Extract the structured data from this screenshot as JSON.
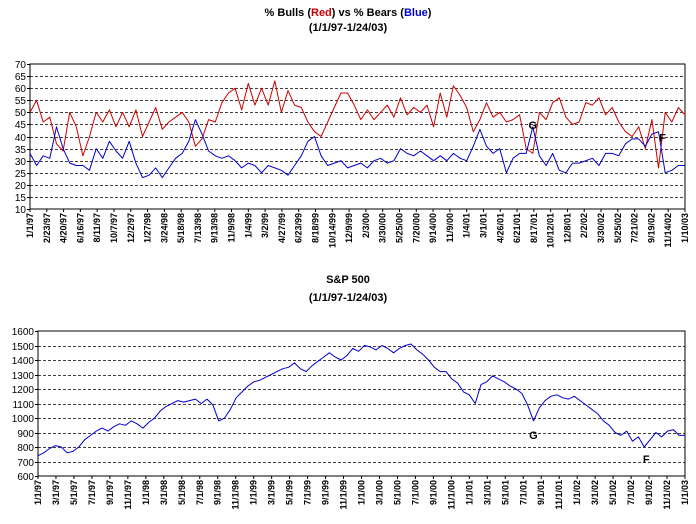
{
  "chart_data": [
    {
      "type": "line",
      "title_parts": [
        {
          "text": "% Bulls (",
          "color": "#000000"
        },
        {
          "text": "Red",
          "color": "#cc0000"
        },
        {
          "text": ") vs % Bears (",
          "color": "#000000"
        },
        {
          "text": "Blue",
          "color": "#0000cc"
        },
        {
          "text": ")",
          "color": "#000000"
        }
      ],
      "subtitle": "(1/1/97-1/24/03)",
      "xlabel": "",
      "ylabel": "",
      "ylim": [
        10,
        70
      ],
      "ytick_step": 5,
      "grid": true,
      "legend": "none",
      "x_tick_labels": [
        "1/1/97",
        "2/23/97",
        "4/20/97",
        "6/16/97",
        "8/11/97",
        "10/7/97",
        "12/2/97",
        "1/27/98",
        "3/24/98",
        "5/18/98",
        "7/13/98",
        "9/13/98",
        "11/9/98",
        "1/4/99",
        "3/2/99",
        "4/27/99",
        "6/23/99",
        "8/18/99",
        "10/14/99",
        "12/9/99",
        "2/3/00",
        "3/30/00",
        "5/25/00",
        "7/20/00",
        "9/14/00",
        "11/9/00",
        "1/4/01",
        "3/1/01",
        "4/26/01",
        "6/21/01",
        "8/17/01",
        "10/12/01",
        "12/8/01",
        "2/2/02",
        "3/30/02",
        "5/25/02",
        "7/21/02",
        "9/19/02",
        "11/14/02",
        "1/10/03"
      ],
      "series": [
        {
          "color": "#cc0000",
          "values": [
            50,
            55,
            46,
            48,
            37,
            34,
            50,
            44,
            32,
            40,
            50,
            46,
            51,
            44,
            50,
            44,
            51,
            40,
            46,
            52,
            43,
            46,
            48,
            50,
            46,
            36,
            39,
            47,
            46,
            54,
            58,
            60,
            51,
            62,
            53,
            60,
            53,
            63,
            50,
            59,
            53,
            52,
            46,
            42,
            40,
            46,
            52,
            58,
            58,
            53,
            47,
            51,
            47,
            50,
            53,
            48,
            56,
            49,
            52,
            50,
            53,
            44,
            58,
            48,
            61,
            57,
            52,
            42,
            47,
            54,
            48,
            50,
            46,
            47,
            49,
            35,
            33,
            50,
            47,
            54,
            56,
            48,
            45,
            46,
            54,
            53,
            56,
            49,
            52,
            46,
            42,
            40,
            44,
            35,
            47,
            27,
            50,
            46,
            52,
            49
          ]
        },
        {
          "color": "#0000cc",
          "values": [
            33,
            28,
            32,
            31,
            44,
            35,
            29,
            28,
            28,
            26,
            35,
            31,
            38,
            34,
            31,
            38,
            29,
            23,
            24,
            27,
            23,
            27,
            31,
            33,
            38,
            47,
            41,
            34,
            32,
            31,
            32,
            30,
            27,
            29,
            28,
            25,
            28,
            27,
            26,
            24,
            28,
            32,
            38,
            40,
            32,
            28,
            29,
            30,
            27,
            28,
            29,
            27,
            30,
            31,
            29,
            30,
            35,
            33,
            32,
            34,
            32,
            30,
            32,
            30,
            33,
            31,
            30,
            36,
            43,
            36,
            33,
            35,
            25,
            31,
            33,
            33,
            44,
            32,
            28,
            33,
            26,
            25,
            29,
            29,
            30,
            31,
            28,
            33,
            33,
            32,
            37,
            39,
            39,
            36,
            41,
            42,
            25,
            26,
            28,
            28
          ]
        }
      ],
      "annotations": [
        "G",
        "F"
      ]
    },
    {
      "type": "line",
      "title": "S&P 500",
      "subtitle": "(1/1/97-1/24/03)",
      "xlabel": "",
      "ylabel": "",
      "ylim": [
        600,
        1600
      ],
      "ytick_step": 100,
      "grid": true,
      "legend": "none",
      "x_tick_labels": [
        "1/1/97",
        "3/1/97",
        "5/1/97",
        "7/1/97",
        "9/1/97",
        "11/1/97",
        "1/1/98",
        "3/1/98",
        "5/1/98",
        "7/1/98",
        "9/1/98",
        "11/1/98",
        "1/1/99",
        "3/1/99",
        "5/1/99",
        "7/1/99",
        "9/1/99",
        "11/1/99",
        "1/1/00",
        "3/1/00",
        "5/1/00",
        "7/1/00",
        "9/1/00",
        "11/1/00",
        "1/1/01",
        "3/1/01",
        "5/1/01",
        "7/1/01",
        "9/1/01",
        "11/1/01",
        "1/1/02",
        "3/1/02",
        "5/1/02",
        "7/1/02",
        "9/1/02",
        "11/1/02",
        "1/1/03"
      ],
      "series": [
        {
          "color": "#0000cc",
          "values": [
            740,
            760,
            790,
            810,
            800,
            760,
            770,
            800,
            850,
            880,
            910,
            930,
            910,
            940,
            960,
            950,
            980,
            960,
            930,
            970,
            1000,
            1050,
            1080,
            1100,
            1120,
            1110,
            1120,
            1130,
            1100,
            1130,
            1090,
            980,
            1000,
            1060,
            1140,
            1180,
            1220,
            1250,
            1260,
            1280,
            1300,
            1320,
            1340,
            1350,
            1380,
            1340,
            1320,
            1360,
            1390,
            1420,
            1450,
            1420,
            1400,
            1430,
            1480,
            1460,
            1500,
            1490,
            1470,
            1500,
            1480,
            1450,
            1480,
            1500,
            1510,
            1470,
            1440,
            1400,
            1350,
            1320,
            1320,
            1270,
            1240,
            1180,
            1160,
            1100,
            1230,
            1250,
            1290,
            1270,
            1250,
            1220,
            1200,
            1170,
            1090,
            980,
            1070,
            1120,
            1150,
            1160,
            1140,
            1130,
            1150,
            1120,
            1090,
            1060,
            1030,
            980,
            950,
            900,
            880,
            910,
            840,
            870,
            800,
            850,
            900,
            870,
            910,
            920,
            880,
            880
          ]
        }
      ],
      "annotations": [
        "G",
        "F"
      ]
    }
  ]
}
